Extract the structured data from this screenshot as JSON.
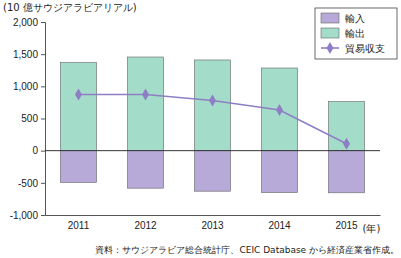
{
  "chart_data": {
    "type": "bar",
    "y_label": "(10 億サウジアラビアリアル)",
    "x_label": "(年)",
    "annotations": [
      "資料：サウジアラビア総合統計庁、CEIC Database から経済産業省作成。"
    ],
    "categories": [
      "2011",
      "2012",
      "2013",
      "2014",
      "2015"
    ],
    "stacked": true,
    "grid": false,
    "legend": "top-right",
    "ylim": [
      -1000,
      2000
    ],
    "yticks": [
      {
        "value": -1000,
        "label": "-1,000"
      },
      -500,
      0,
      500,
      {
        "value": 1000,
        "label": "1,000"
      },
      {
        "value": 1500,
        "label": "1,500"
      },
      {
        "value": 2000,
        "label": "2,000"
      }
    ],
    "series": [
      {
        "name": "輸入",
        "type": "bar",
        "color": "#b7aad9",
        "values": [
          -494,
          -583,
          -630,
          -652,
          -655
        ]
      },
      {
        "name": "輸出",
        "type": "bar",
        "color": "#a3dcc9",
        "values": [
          1368,
          1456,
          1410,
          1285,
          763
        ]
      },
      {
        "name": "貿易収支",
        "type": "line",
        "color": "#8e7fc4",
        "marker": "diamond",
        "line_style": "solid",
        "values": [
          874,
          873,
          780,
          633,
          108
        ]
      }
    ]
  }
}
